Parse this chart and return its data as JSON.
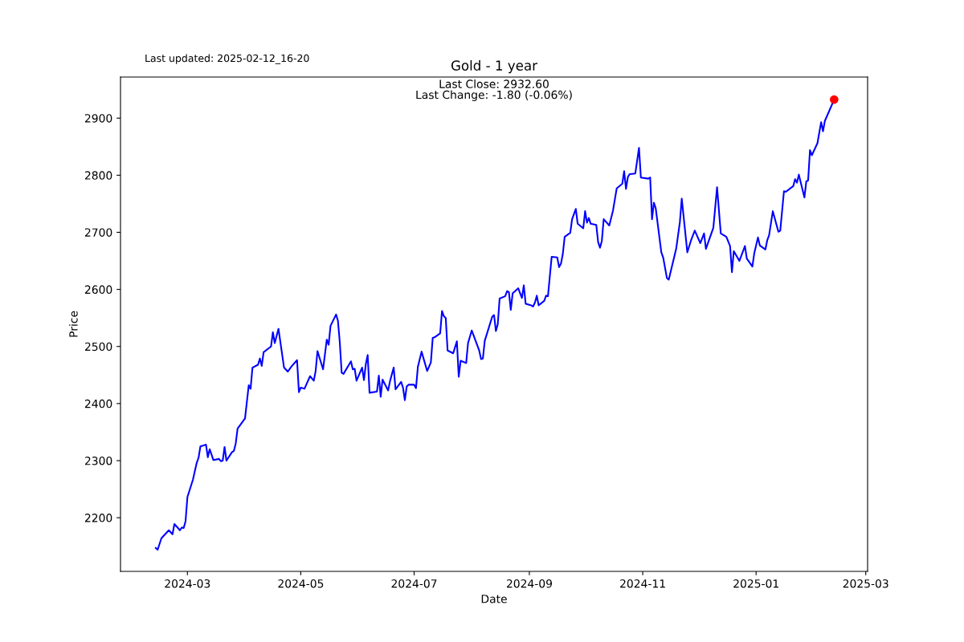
{
  "chart_data": {
    "type": "line",
    "title": "Gold - 1 year",
    "xlabel": "Date",
    "ylabel": "Price",
    "annotations": [
      "Last updated: 2025-02-12_16-20",
      "Last Close: 2932.60",
      "Last Change: -1.80 (-0.06%)"
    ],
    "xlim": [
      "2024-01-25",
      "2025-03-02"
    ],
    "ylim": [
      2106,
      2972
    ],
    "xticks": [
      {
        "value": "2024-03-01",
        "label": "2024-03"
      },
      {
        "value": "2024-05-01",
        "label": "2024-05"
      },
      {
        "value": "2024-07-01",
        "label": "2024-07"
      },
      {
        "value": "2024-09-01",
        "label": "2024-09"
      },
      {
        "value": "2024-11-01",
        "label": "2024-11"
      },
      {
        "value": "2025-01-01",
        "label": "2025-01"
      },
      {
        "value": "2025-03-01",
        "label": "2025-03"
      }
    ],
    "yticks": [
      2200,
      2300,
      2400,
      2500,
      2600,
      2700,
      2800,
      2900
    ],
    "grid": false,
    "series": [
      {
        "color": "#0000ff",
        "marker": "none",
        "line_style": "solid",
        "x": [
          "2024-02-13",
          "2024-02-14",
          "2024-02-16",
          "2024-02-20",
          "2024-02-22",
          "2024-02-23",
          "2024-02-26",
          "2024-02-27",
          "2024-02-28",
          "2024-02-29",
          "2024-03-01",
          "2024-03-04",
          "2024-03-06",
          "2024-03-07",
          "2024-03-08",
          "2024-03-11",
          "2024-03-12",
          "2024-03-13",
          "2024-03-15",
          "2024-03-18",
          "2024-03-19",
          "2024-03-20",
          "2024-03-21",
          "2024-03-22",
          "2024-03-25",
          "2024-03-26",
          "2024-03-27",
          "2024-03-28",
          "2024-04-01",
          "2024-04-03",
          "2024-04-04",
          "2024-04-05",
          "2024-04-08",
          "2024-04-09",
          "2024-04-10",
          "2024-04-11",
          "2024-04-15",
          "2024-04-16",
          "2024-04-17",
          "2024-04-19",
          "2024-04-22",
          "2024-04-24",
          "2024-04-26",
          "2024-04-29",
          "2024-04-30",
          "2024-05-01",
          "2024-05-03",
          "2024-05-06",
          "2024-05-08",
          "2024-05-09",
          "2024-05-10",
          "2024-05-13",
          "2024-05-15",
          "2024-05-16",
          "2024-05-17",
          "2024-05-20",
          "2024-05-21",
          "2024-05-22",
          "2024-05-23",
          "2024-05-24",
          "2024-05-28",
          "2024-05-29",
          "2024-05-30",
          "2024-05-31",
          "2024-06-03",
          "2024-06-04",
          "2024-06-05",
          "2024-06-06",
          "2024-06-07",
          "2024-06-11",
          "2024-06-12",
          "2024-06-13",
          "2024-06-14",
          "2024-06-17",
          "2024-06-18",
          "2024-06-20",
          "2024-06-21",
          "2024-06-24",
          "2024-06-25",
          "2024-06-26",
          "2024-06-27",
          "2024-06-28",
          "2024-07-01",
          "2024-07-02",
          "2024-07-03",
          "2024-07-05",
          "2024-07-08",
          "2024-07-10",
          "2024-07-11",
          "2024-07-12",
          "2024-07-15",
          "2024-07-16",
          "2024-07-17",
          "2024-07-18",
          "2024-07-19",
          "2024-07-22",
          "2024-07-24",
          "2024-07-25",
          "2024-07-26",
          "2024-07-29",
          "2024-07-30",
          "2024-08-01",
          "2024-08-05",
          "2024-08-06",
          "2024-08-07",
          "2024-08-08",
          "2024-08-12",
          "2024-08-13",
          "2024-08-14",
          "2024-08-15",
          "2024-08-16",
          "2024-08-19",
          "2024-08-20",
          "2024-08-21",
          "2024-08-22",
          "2024-08-23",
          "2024-08-26",
          "2024-08-28",
          "2024-08-29",
          "2024-08-30",
          "2024-09-02",
          "2024-09-03",
          "2024-09-04",
          "2024-09-05",
          "2024-09-06",
          "2024-09-09",
          "2024-09-10",
          "2024-09-11",
          "2024-09-13",
          "2024-09-16",
          "2024-09-17",
          "2024-09-18",
          "2024-09-19",
          "2024-09-20",
          "2024-09-23",
          "2024-09-24",
          "2024-09-26",
          "2024-09-27",
          "2024-09-30",
          "2024-10-01",
          "2024-10-02",
          "2024-10-03",
          "2024-10-04",
          "2024-10-07",
          "2024-10-08",
          "2024-10-09",
          "2024-10-10",
          "2024-10-11",
          "2024-10-14",
          "2024-10-16",
          "2024-10-18",
          "2024-10-21",
          "2024-10-22",
          "2024-10-23",
          "2024-10-24",
          "2024-10-25",
          "2024-10-28",
          "2024-10-30",
          "2024-10-31",
          "2024-11-04",
          "2024-11-05",
          "2024-11-06",
          "2024-11-07",
          "2024-11-08",
          "2024-11-11",
          "2024-11-12",
          "2024-11-14",
          "2024-11-15",
          "2024-11-19",
          "2024-11-21",
          "2024-11-22",
          "2024-11-25",
          "2024-11-27",
          "2024-11-29",
          "2024-12-02",
          "2024-12-04",
          "2024-12-05",
          "2024-12-09",
          "2024-12-11",
          "2024-12-13",
          "2024-12-16",
          "2024-12-18",
          "2024-12-19",
          "2024-12-20",
          "2024-12-23",
          "2024-12-26",
          "2024-12-27",
          "2024-12-30",
          "2024-12-31",
          "2025-01-02",
          "2025-01-03",
          "2025-01-06",
          "2025-01-07",
          "2025-01-08",
          "2025-01-10",
          "2025-01-13",
          "2025-01-14",
          "2025-01-16",
          "2025-01-17",
          "2025-01-21",
          "2025-01-22",
          "2025-01-23",
          "2025-01-24",
          "2025-01-27",
          "2025-01-28",
          "2025-01-29",
          "2025-01-30",
          "2025-01-31",
          "2025-02-03",
          "2025-02-05",
          "2025-02-06",
          "2025-02-07",
          "2025-02-12"
        ],
        "values": [
          2147,
          2144,
          2164,
          2178,
          2171,
          2189,
          2178,
          2183,
          2182,
          2194,
          2236,
          2267,
          2296,
          2305,
          2325,
          2328,
          2306,
          2320,
          2301,
          2303,
          2299,
          2300,
          2324,
          2300,
          2315,
          2317,
          2330,
          2356,
          2374,
          2432,
          2426,
          2463,
          2468,
          2479,
          2466,
          2490,
          2500,
          2525,
          2506,
          2531,
          2463,
          2456,
          2465,
          2476,
          2420,
          2428,
          2426,
          2448,
          2440,
          2457,
          2492,
          2460,
          2512,
          2503,
          2536,
          2556,
          2545,
          2507,
          2454,
          2452,
          2474,
          2460,
          2461,
          2440,
          2463,
          2441,
          2469,
          2485,
          2419,
          2421,
          2449,
          2412,
          2442,
          2423,
          2439,
          2463,
          2425,
          2438,
          2428,
          2406,
          2430,
          2433,
          2433,
          2427,
          2464,
          2491,
          2457,
          2472,
          2515,
          2516,
          2523,
          2562,
          2553,
          2550,
          2493,
          2488,
          2509,
          2447,
          2475,
          2471,
          2506,
          2528,
          2493,
          2478,
          2479,
          2510,
          2552,
          2555,
          2527,
          2539,
          2584,
          2588,
          2597,
          2595,
          2564,
          2593,
          2602,
          2585,
          2607,
          2575,
          2572,
          2570,
          2577,
          2589,
          2572,
          2580,
          2589,
          2588,
          2657,
          2656,
          2639,
          2645,
          2662,
          2692,
          2699,
          2723,
          2741,
          2715,
          2707,
          2737,
          2717,
          2725,
          2715,
          2713,
          2683,
          2673,
          2685,
          2723,
          2712,
          2738,
          2777,
          2785,
          2807,
          2776,
          2797,
          2802,
          2803,
          2848,
          2796,
          2794,
          2796,
          2723,
          2752,
          2742,
          2665,
          2656,
          2620,
          2617,
          2671,
          2718,
          2759,
          2665,
          2686,
          2703,
          2681,
          2698,
          2671,
          2708,
          2779,
          2698,
          2692,
          2676,
          2630,
          2667,
          2650,
          2676,
          2654,
          2640,
          2663,
          2691,
          2677,
          2670,
          2686,
          2695,
          2737,
          2701,
          2703,
          2772,
          2771,
          2781,
          2793,
          2787,
          2801,
          2761,
          2789,
          2791,
          2844,
          2835,
          2856,
          2893,
          2877,
          2895,
          2932.6
        ]
      },
      {
        "type": "scatter",
        "color": "#ff0000",
        "marker": "circle",
        "x": [
          "2025-02-12"
        ],
        "values": [
          2932.6
        ]
      }
    ]
  }
}
